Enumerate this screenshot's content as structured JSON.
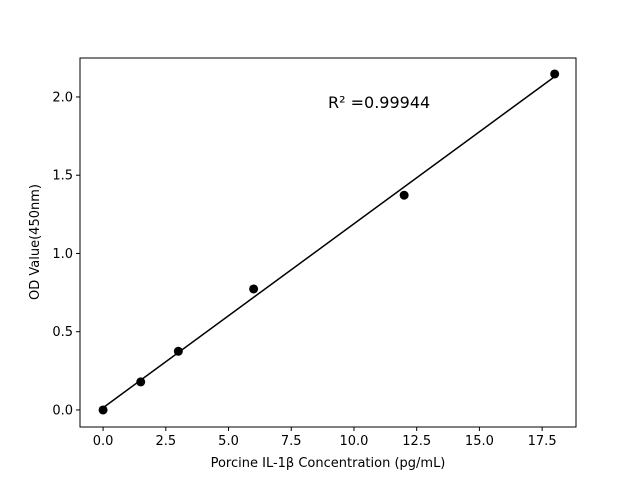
{
  "chart_data": {
    "type": "scatter",
    "title": "",
    "xlabel": "Porcine IL-1β  Concentration (pg/mL)",
    "ylabel": "OD Value(450nm)",
    "xlim": [
      -0.92,
      18.85
    ],
    "ylim": [
      -0.109,
      2.249
    ],
    "grid": false,
    "x_ticks": [
      "0.0",
      "2.5",
      "5.0",
      "7.5",
      "10.0",
      "12.5",
      "15.0",
      "17.5"
    ],
    "y_ticks": [
      "0.0",
      "0.5",
      "1.0",
      "1.5",
      "2.0"
    ],
    "points": {
      "x": [
        0,
        1.5,
        3,
        6,
        12,
        18
      ],
      "y": [
        0.0,
        0.179,
        0.375,
        0.773,
        1.372,
        2.147
      ]
    },
    "fit_line": "linear",
    "annotation": "R² =0.99944",
    "colors": {
      "points": "#000000",
      "line": "#000000"
    }
  }
}
